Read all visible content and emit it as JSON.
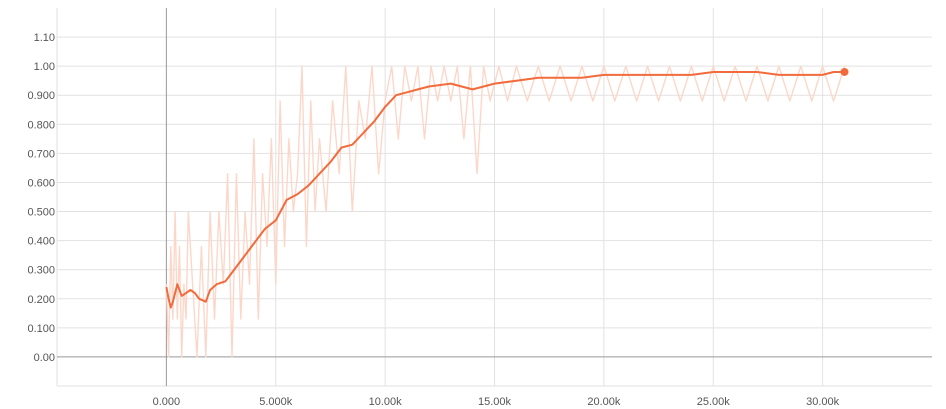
{
  "chart_data": {
    "type": "line",
    "title": "",
    "xlabel": "",
    "ylabel": "",
    "xlim": [
      -5000,
      35000
    ],
    "ylim": [
      -0.1,
      1.2
    ],
    "grid": true,
    "x_tick_values": [
      0,
      5000,
      10000,
      15000,
      20000,
      25000,
      30000
    ],
    "x_tick_labels": [
      "0.000",
      "5.000k",
      "10.00k",
      "15.00k",
      "20.00k",
      "25.00k",
      "30.00k"
    ],
    "y_tick_values": [
      0.0,
      0.1,
      0.2,
      0.3,
      0.4,
      0.5,
      0.6,
      0.7,
      0.8,
      0.9,
      1.0,
      1.1
    ],
    "y_tick_labels": [
      "0.00",
      "0.100",
      "0.200",
      "0.300",
      "0.400",
      "0.500",
      "0.600",
      "0.700",
      "0.800",
      "0.900",
      "1.00",
      "1.10"
    ],
    "colors": {
      "smoothed": "#f16b3c",
      "raw": "#fcd7c9",
      "endpoint": "#f16b3c"
    },
    "series": [
      {
        "role": "smoothed",
        "x": [
          0,
          100,
          200,
          300,
          500,
          700,
          900,
          1100,
          1300,
          1500,
          1800,
          2000,
          2300,
          2700,
          3000,
          3500,
          4000,
          4500,
          5000,
          5500,
          6000,
          6500,
          7000,
          7500,
          8000,
          8500,
          9000,
          9500,
          10000,
          10500,
          11000,
          11500,
          12000,
          13000,
          14000,
          14500,
          15000,
          16000,
          17000,
          18000,
          19000,
          20000,
          21000,
          22000,
          23000,
          24000,
          25000,
          26000,
          27000,
          28000,
          29000,
          30000,
          30500,
          31000
        ],
        "y": [
          0.24,
          0.2,
          0.17,
          0.19,
          0.25,
          0.21,
          0.22,
          0.23,
          0.22,
          0.2,
          0.19,
          0.23,
          0.25,
          0.26,
          0.29,
          0.34,
          0.39,
          0.44,
          0.47,
          0.54,
          0.56,
          0.59,
          0.63,
          0.67,
          0.72,
          0.73,
          0.77,
          0.81,
          0.86,
          0.9,
          0.91,
          0.92,
          0.93,
          0.94,
          0.92,
          0.93,
          0.94,
          0.95,
          0.96,
          0.96,
          0.96,
          0.97,
          0.97,
          0.97,
          0.97,
          0.97,
          0.98,
          0.98,
          0.98,
          0.97,
          0.97,
          0.97,
          0.98,
          0.98
        ]
      },
      {
        "role": "raw",
        "x": [
          0,
          100,
          200,
          300,
          400,
          500,
          600,
          700,
          800,
          900,
          1000,
          1200,
          1400,
          1600,
          1800,
          2000,
          2200,
          2400,
          2600,
          2800,
          3000,
          3200,
          3400,
          3600,
          3800,
          4000,
          4200,
          4400,
          4600,
          4800,
          5000,
          5200,
          5400,
          5600,
          5800,
          6000,
          6200,
          6400,
          6600,
          6800,
          7000,
          7300,
          7600,
          7900,
          8200,
          8500,
          8800,
          9100,
          9400,
          9700,
          10000,
          10300,
          10600,
          10900,
          11200,
          11500,
          11800,
          12100,
          12400,
          12700,
          13000,
          13300,
          13600,
          13900,
          14200,
          14500,
          14800,
          15200,
          15600,
          16000,
          16500,
          17000,
          17500,
          18000,
          18500,
          19000,
          19500,
          20000,
          20500,
          21000,
          21500,
          22000,
          22500,
          23000,
          23500,
          24000,
          24500,
          25000,
          25500,
          26000,
          26500,
          27000,
          27500,
          28000,
          28500,
          29000,
          29500,
          30000,
          30500,
          31000
        ],
        "y": [
          0.25,
          0.0,
          0.38,
          0.13,
          0.5,
          0.13,
          0.38,
          0.0,
          0.25,
          0.13,
          0.5,
          0.25,
          0.0,
          0.38,
          0.0,
          0.5,
          0.13,
          0.5,
          0.25,
          0.63,
          0.0,
          0.63,
          0.13,
          0.5,
          0.25,
          0.75,
          0.13,
          0.63,
          0.38,
          0.75,
          0.25,
          0.88,
          0.38,
          0.75,
          0.5,
          0.63,
          1.0,
          0.38,
          0.88,
          0.5,
          0.75,
          0.5,
          0.88,
          0.63,
          1.0,
          0.5,
          0.88,
          0.75,
          1.0,
          0.63,
          0.88,
          1.0,
          0.75,
          1.0,
          0.88,
          1.0,
          0.75,
          1.0,
          0.88,
          1.0,
          0.88,
          1.0,
          0.75,
          1.0,
          0.63,
          1.0,
          0.88,
          1.0,
          0.88,
          1.0,
          0.88,
          1.0,
          0.88,
          1.0,
          0.88,
          1.0,
          0.88,
          1.0,
          0.88,
          1.0,
          0.88,
          1.0,
          0.88,
          1.0,
          0.88,
          1.0,
          0.88,
          1.0,
          0.88,
          1.0,
          0.88,
          1.0,
          0.88,
          1.0,
          0.88,
          1.0,
          0.88,
          1.0,
          0.88,
          1.0
        ]
      }
    ],
    "endpoint": {
      "x": 31000,
      "y": 0.98
    }
  }
}
